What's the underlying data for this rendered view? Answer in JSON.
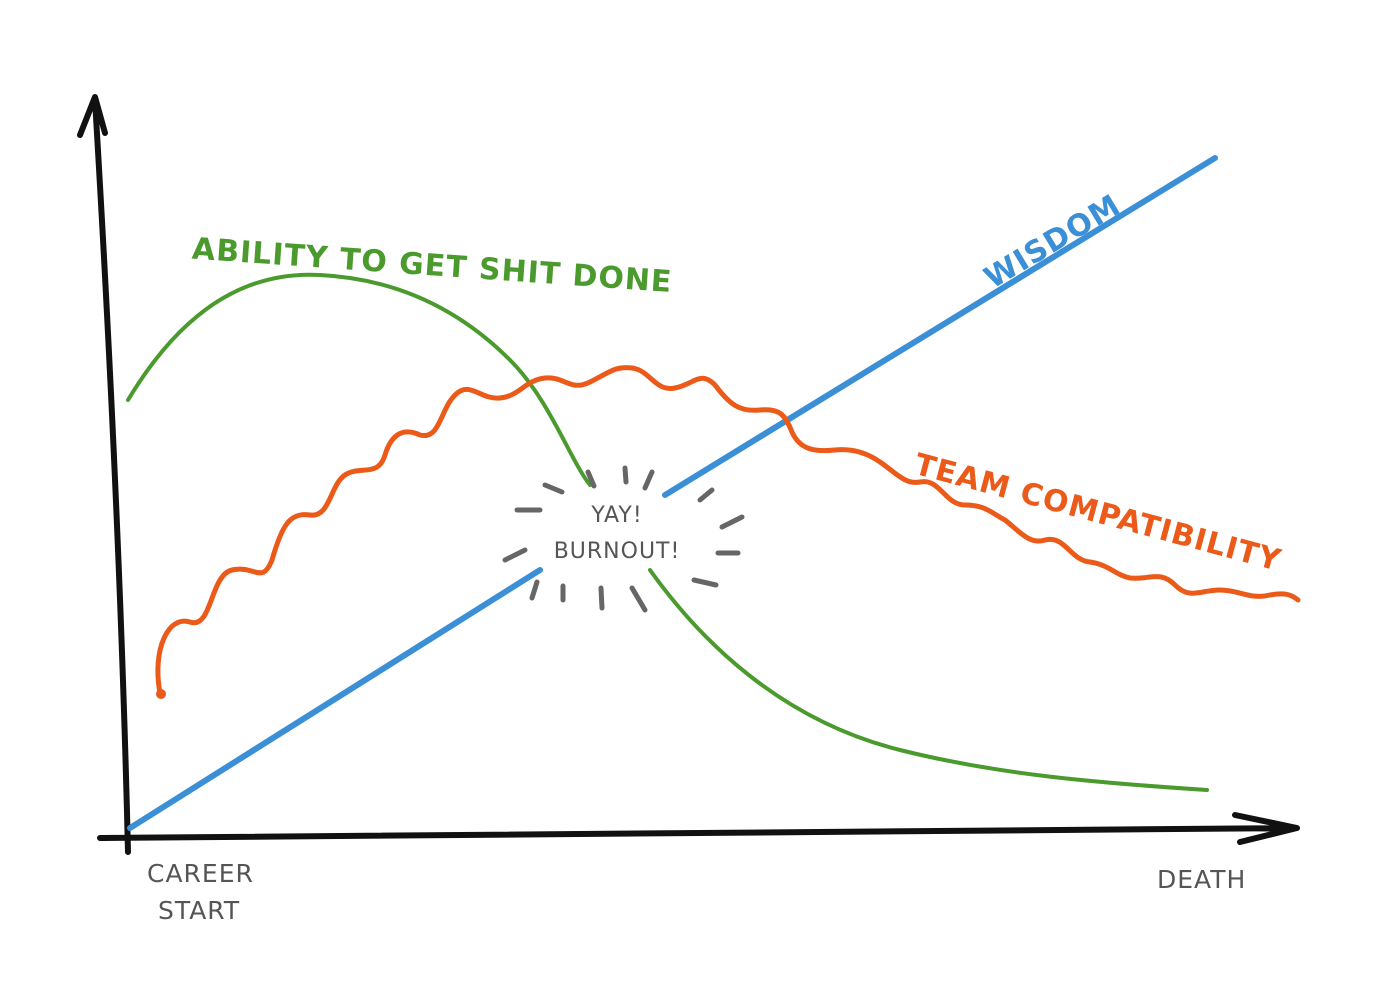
{
  "x_axis": {
    "start_label": [
      "CAREER",
      "START"
    ],
    "end_label": "DEATH"
  },
  "curves": [
    {
      "label": "ABILITY TO GET SHIT DONE"
    },
    {
      "label": "WISDOM"
    },
    {
      "label": "TEAM COMPATIBILITY"
    }
  ],
  "annotation": [
    "YAY!",
    "BURNOUT!"
  ]
}
